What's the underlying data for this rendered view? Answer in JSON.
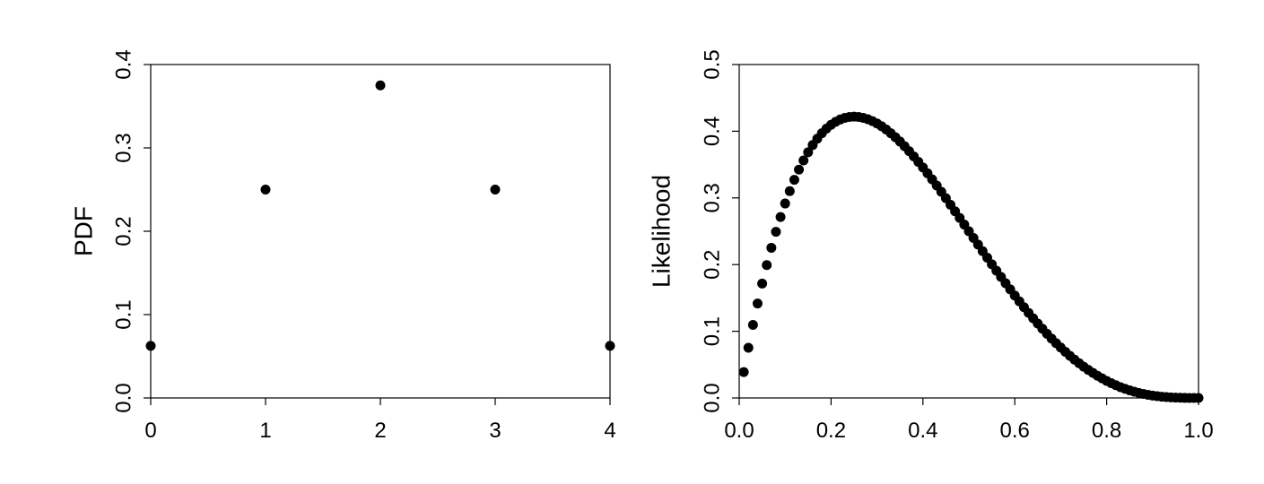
{
  "chart_data": [
    {
      "type": "scatter",
      "title": "",
      "xlabel": "",
      "ylabel": "PDF",
      "xlim": [
        0,
        4
      ],
      "ylim": [
        0,
        0.4
      ],
      "x_ticks": [
        "0",
        "1",
        "2",
        "3",
        "4"
      ],
      "y_ticks": [
        "0.0",
        "0.1",
        "0.2",
        "0.3",
        "0.4"
      ],
      "grid": false,
      "marker_color": "#000000",
      "points": [
        {
          "x": 0,
          "y": 0.0625
        },
        {
          "x": 1,
          "y": 0.25
        },
        {
          "x": 2,
          "y": 0.375
        },
        {
          "x": 3,
          "y": 0.25
        },
        {
          "x": 4,
          "y": 0.0625
        }
      ]
    },
    {
      "type": "scatter",
      "title": "",
      "xlabel": "",
      "ylabel": "Likelihood",
      "xlim": [
        0,
        1
      ],
      "ylim": [
        0,
        0.5
      ],
      "x_ticks": [
        "0.0",
        "0.2",
        "0.4",
        "0.6",
        "0.8",
        "1.0"
      ],
      "y_ticks": [
        "0.0",
        "0.1",
        "0.2",
        "0.3",
        "0.4",
        "0.5"
      ],
      "grid": false,
      "marker_color": "#000000",
      "points": [
        {
          "x": 0.01,
          "y": 0.0388
        },
        {
          "x": 0.02,
          "y": 0.0753
        },
        {
          "x": 0.03,
          "y": 0.1095
        },
        {
          "x": 0.04,
          "y": 0.1416
        },
        {
          "x": 0.05,
          "y": 0.1715
        },
        {
          "x": 0.06,
          "y": 0.1993
        },
        {
          "x": 0.07,
          "y": 0.2252
        },
        {
          "x": 0.08,
          "y": 0.2492
        },
        {
          "x": 0.09,
          "y": 0.2713
        },
        {
          "x": 0.1,
          "y": 0.2916
        },
        {
          "x": 0.11,
          "y": 0.3102
        },
        {
          "x": 0.12,
          "y": 0.3271
        },
        {
          "x": 0.13,
          "y": 0.3424
        },
        {
          "x": 0.14,
          "y": 0.3562
        },
        {
          "x": 0.15,
          "y": 0.3685
        },
        {
          "x": 0.16,
          "y": 0.3793
        },
        {
          "x": 0.17,
          "y": 0.3888
        },
        {
          "x": 0.18,
          "y": 0.397
        },
        {
          "x": 0.19,
          "y": 0.4039
        },
        {
          "x": 0.2,
          "y": 0.4096
        },
        {
          "x": 0.21,
          "y": 0.4142
        },
        {
          "x": 0.22,
          "y": 0.4176
        },
        {
          "x": 0.23,
          "y": 0.42
        },
        {
          "x": 0.24,
          "y": 0.4214
        },
        {
          "x": 0.25,
          "y": 0.4219
        },
        {
          "x": 0.26,
          "y": 0.4214
        },
        {
          "x": 0.27,
          "y": 0.4201
        },
        {
          "x": 0.28,
          "y": 0.418
        },
        {
          "x": 0.29,
          "y": 0.4152
        },
        {
          "x": 0.3,
          "y": 0.4116
        },
        {
          "x": 0.31,
          "y": 0.4074
        },
        {
          "x": 0.32,
          "y": 0.4025
        },
        {
          "x": 0.33,
          "y": 0.397
        },
        {
          "x": 0.34,
          "y": 0.391
        },
        {
          "x": 0.35,
          "y": 0.3845
        },
        {
          "x": 0.36,
          "y": 0.3775
        },
        {
          "x": 0.37,
          "y": 0.3701
        },
        {
          "x": 0.38,
          "y": 0.3623
        },
        {
          "x": 0.39,
          "y": 0.3541
        },
        {
          "x": 0.4,
          "y": 0.3456
        },
        {
          "x": 0.41,
          "y": 0.3368
        },
        {
          "x": 0.42,
          "y": 0.3278
        },
        {
          "x": 0.43,
          "y": 0.3185
        },
        {
          "x": 0.44,
          "y": 0.3091
        },
        {
          "x": 0.45,
          "y": 0.2995
        },
        {
          "x": 0.46,
          "y": 0.2897
        },
        {
          "x": 0.47,
          "y": 0.2799
        },
        {
          "x": 0.48,
          "y": 0.27
        },
        {
          "x": 0.49,
          "y": 0.26
        },
        {
          "x": 0.5,
          "y": 0.25
        },
        {
          "x": 0.51,
          "y": 0.24
        },
        {
          "x": 0.52,
          "y": 0.23
        },
        {
          "x": 0.53,
          "y": 0.2201
        },
        {
          "x": 0.54,
          "y": 0.2103
        },
        {
          "x": 0.55,
          "y": 0.2005
        },
        {
          "x": 0.56,
          "y": 0.1909
        },
        {
          "x": 0.57,
          "y": 0.1814
        },
        {
          "x": 0.58,
          "y": 0.172
        },
        {
          "x": 0.59,
          "y": 0.1628
        },
        {
          "x": 0.6,
          "y": 0.1536
        },
        {
          "x": 0.61,
          "y": 0.1448
        },
        {
          "x": 0.62,
          "y": 0.1361
        },
        {
          "x": 0.63,
          "y": 0.1276
        },
        {
          "x": 0.64,
          "y": 0.1194
        },
        {
          "x": 0.65,
          "y": 0.1115
        },
        {
          "x": 0.66,
          "y": 0.1038
        },
        {
          "x": 0.67,
          "y": 0.0963
        },
        {
          "x": 0.68,
          "y": 0.0891
        },
        {
          "x": 0.69,
          "y": 0.0822
        },
        {
          "x": 0.7,
          "y": 0.0756
        },
        {
          "x": 0.71,
          "y": 0.0693
        },
        {
          "x": 0.72,
          "y": 0.0632
        },
        {
          "x": 0.73,
          "y": 0.0575
        },
        {
          "x": 0.74,
          "y": 0.0521
        },
        {
          "x": 0.75,
          "y": 0.0469
        },
        {
          "x": 0.76,
          "y": 0.0421
        },
        {
          "x": 0.77,
          "y": 0.0376
        },
        {
          "x": 0.78,
          "y": 0.0333
        },
        {
          "x": 0.79,
          "y": 0.0294
        },
        {
          "x": 0.8,
          "y": 0.0256
        },
        {
          "x": 0.81,
          "y": 0.0222
        },
        {
          "x": 0.82,
          "y": 0.0191
        },
        {
          "x": 0.83,
          "y": 0.0162
        },
        {
          "x": 0.84,
          "y": 0.0138
        },
        {
          "x": 0.85,
          "y": 0.0115
        },
        {
          "x": 0.86,
          "y": 0.0094
        },
        {
          "x": 0.87,
          "y": 0.0076
        },
        {
          "x": 0.88,
          "y": 0.0061
        },
        {
          "x": 0.89,
          "y": 0.0047
        },
        {
          "x": 0.9,
          "y": 0.0036
        },
        {
          "x": 0.91,
          "y": 0.0027
        },
        {
          "x": 0.92,
          "y": 0.0019
        },
        {
          "x": 0.93,
          "y": 0.0013
        },
        {
          "x": 0.94,
          "y": 0.0008
        },
        {
          "x": 0.95,
          "y": 0.0005
        },
        {
          "x": 0.96,
          "y": 0.0003
        },
        {
          "x": 0.97,
          "y": 0.0001
        },
        {
          "x": 0.98,
          "y": 0.0
        },
        {
          "x": 0.99,
          "y": 0.0
        },
        {
          "x": 1.0,
          "y": 0.0
        }
      ]
    }
  ]
}
